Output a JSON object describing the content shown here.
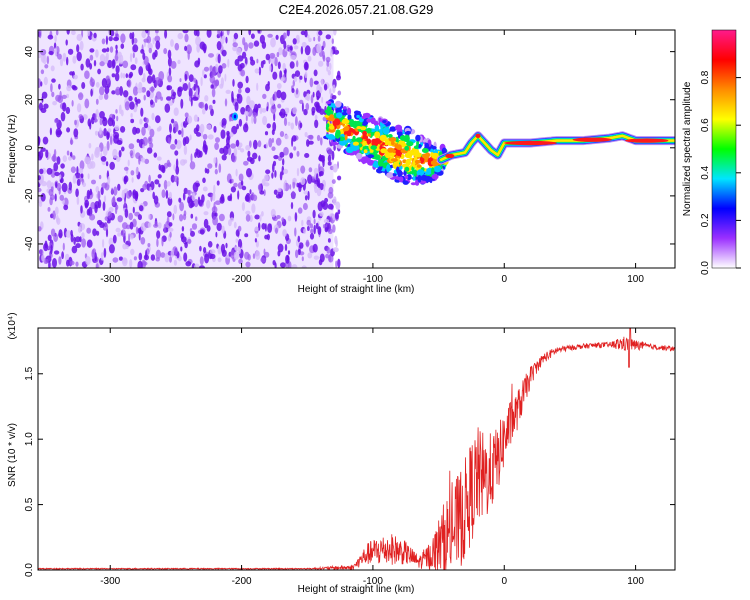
{
  "title": "C2E4.2026.057.21.08.G29",
  "chart_data": [
    {
      "type": "heatmap",
      "name": "spectrogram",
      "xlabel": "Height of straight line (km)",
      "ylabel": "Frequency (Hz)",
      "xlim": [
        -355,
        130
      ],
      "ylim": [
        -50,
        49
      ],
      "xticks": [
        -300,
        -200,
        -100,
        0,
        100
      ],
      "yticks": [
        -40,
        -20,
        0,
        20,
        40
      ],
      "noise_region": {
        "x_range": [
          -355,
          -130
        ],
        "y_range": [
          -50,
          49
        ],
        "color": "#7a1fe0"
      },
      "ridge": {
        "x": [
          -135,
          -125,
          -115,
          -105,
          -95,
          -85,
          -75,
          -65,
          -55,
          -48,
          -40,
          -30,
          -25,
          -20,
          -15,
          -10,
          -5,
          0,
          10,
          20,
          40,
          60,
          80,
          90,
          100,
          115,
          130
        ],
        "freq": [
          12,
          9,
          6,
          4,
          1,
          -1,
          -3,
          -5,
          -6,
          -5,
          -3,
          -2,
          2,
          5,
          2,
          -1,
          -3,
          2,
          2,
          2,
          3,
          3,
          4,
          5,
          3,
          3,
          3
        ],
        "spread": [
          9,
          9,
          9,
          10,
          11,
          12,
          12,
          10,
          8,
          5,
          4,
          3,
          3,
          3,
          3,
          3,
          3,
          2,
          2,
          2,
          2,
          2,
          2,
          2,
          2,
          2,
          2
        ]
      },
      "colorbar": {
        "label": "Normalized spectral amplitude",
        "range": [
          0,
          1
        ],
        "ticks": [
          "0.0",
          "0.2",
          "0.4",
          "0.6",
          "0.8"
        ],
        "colors": [
          "#ffffff",
          "#9b30ff",
          "#0000ff",
          "#00e5ff",
          "#00ff00",
          "#ffff00",
          "#ff8c00",
          "#ff0000",
          "#ff1a8c"
        ]
      }
    },
    {
      "type": "line",
      "name": "snr",
      "xlabel": "Height of straight line (km)",
      "ylabel": "SNR (10 * v/v)",
      "exponent_label": "(x10⁴)",
      "xlim": [
        -355,
        130
      ],
      "ylim": [
        0,
        1.85
      ],
      "xticks": [
        -300,
        -200,
        -100,
        0,
        100
      ],
      "yticks": [
        "0.0",
        "0.5",
        "1.0",
        "1.5"
      ],
      "line_color": "#e02020",
      "series": {
        "x": [
          -355,
          -300,
          -250,
          -200,
          -150,
          -115,
          -105,
          -95,
          -85,
          -75,
          -65,
          -55,
          -45,
          -38,
          -30,
          -25,
          -20,
          -15,
          -10,
          -5,
          0,
          5,
          10,
          15,
          20,
          25,
          30,
          40,
          50,
          60,
          70,
          80,
          90,
          100,
          110,
          120,
          130
        ],
        "mean": [
          0.01,
          0.01,
          0.01,
          0.01,
          0.01,
          0.02,
          0.12,
          0.15,
          0.16,
          0.13,
          0.06,
          0.12,
          0.25,
          0.32,
          0.45,
          0.6,
          0.72,
          0.7,
          0.75,
          0.85,
          1.0,
          1.12,
          1.22,
          1.35,
          1.48,
          1.56,
          1.62,
          1.68,
          1.7,
          1.71,
          1.72,
          1.72,
          1.73,
          1.72,
          1.71,
          1.7,
          1.69
        ],
        "noise": [
          0.004,
          0.004,
          0.004,
          0.004,
          0.004,
          0.02,
          0.08,
          0.12,
          0.12,
          0.09,
          0.05,
          0.12,
          0.3,
          0.35,
          0.4,
          0.4,
          0.38,
          0.35,
          0.3,
          0.25,
          0.22,
          0.18,
          0.15,
          0.12,
          0.08,
          0.05,
          0.04,
          0.03,
          0.02,
          0.02,
          0.02,
          0.02,
          0.06,
          0.04,
          0.02,
          0.02,
          0.02
        ]
      }
    }
  ]
}
